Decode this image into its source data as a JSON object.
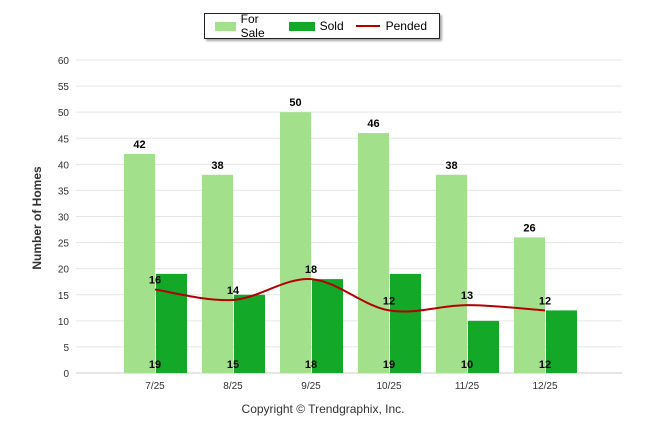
{
  "chart_data": {
    "type": "bar",
    "categories": [
      "7/25",
      "8/25",
      "9/25",
      "10/25",
      "11/25",
      "12/25"
    ],
    "series": [
      {
        "name": "For Sale",
        "type": "bar",
        "color": "#a3e08c",
        "values": [
          42,
          38,
          50,
          46,
          38,
          26
        ]
      },
      {
        "name": "Sold",
        "type": "bar",
        "color": "#14a829",
        "values": [
          19,
          15,
          18,
          19,
          10,
          12
        ]
      },
      {
        "name": "Pended",
        "type": "line",
        "color": "#b30000",
        "values": [
          16,
          14,
          18,
          12,
          13,
          12
        ]
      }
    ],
    "ylabel": "Number of Homes",
    "xlabel": "",
    "ylim": [
      0,
      60
    ],
    "yticks": [
      0,
      5,
      10,
      15,
      20,
      25,
      30,
      35,
      40,
      45,
      50,
      55,
      60
    ],
    "legend_position": "top-center",
    "grid": true
  },
  "legend": {
    "for_sale": "For Sale",
    "sold": "Sold",
    "pended": "Pended"
  },
  "footer": "Copyright © Trendgraphix, Inc."
}
